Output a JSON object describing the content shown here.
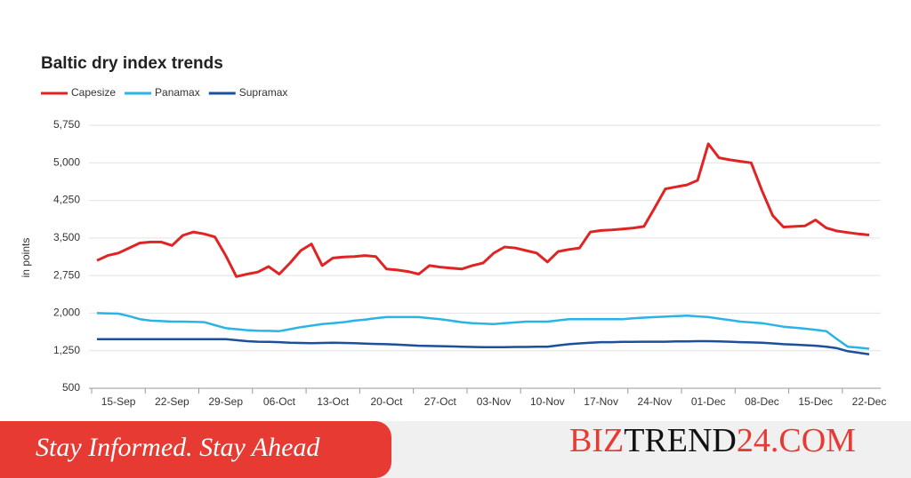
{
  "chart_data": {
    "type": "line",
    "title": "Baltic dry index trends",
    "y_label": "in points",
    "categories": [
      null,
      null,
      "15-Sep",
      null,
      null,
      null,
      null,
      "22-Sep",
      null,
      null,
      null,
      null,
      "29-Sep",
      null,
      null,
      null,
      null,
      "06-Oct",
      null,
      null,
      null,
      null,
      "13-Oct",
      null,
      null,
      null,
      null,
      "20-Oct",
      null,
      null,
      null,
      null,
      "27-Oct",
      null,
      null,
      null,
      null,
      "03-Nov",
      null,
      null,
      null,
      null,
      "10-Nov",
      null,
      null,
      null,
      null,
      "17-Nov",
      null,
      null,
      null,
      null,
      "24-Nov",
      null,
      null,
      null,
      null,
      "01-Dec",
      null,
      null,
      null,
      null,
      "08-Dec",
      null,
      null,
      null,
      null,
      "15-Dec",
      null,
      null,
      null,
      null,
      "22-Dec"
    ],
    "series": [
      {
        "name": "Capesize",
        "color": "#e02424",
        "values": [
          3050,
          3150,
          3200,
          3300,
          3400,
          3420,
          3420,
          3350,
          3550,
          3620,
          3580,
          3520,
          3150,
          2730,
          2780,
          2820,
          2930,
          2780,
          3000,
          3250,
          3380,
          2950,
          3100,
          3120,
          3130,
          3150,
          3130,
          2880,
          2860,
          2830,
          2780,
          2950,
          2920,
          2900,
          2880,
          2950,
          3000,
          3200,
          3320,
          3300,
          3250,
          3200,
          3020,
          3230,
          3270,
          3300,
          3620,
          3650,
          3660,
          3680,
          3700,
          3730,
          4100,
          4480,
          4520,
          4560,
          4650,
          5380,
          5100,
          5060,
          5030,
          5000,
          4450,
          3950,
          3720,
          3730,
          3740,
          3860,
          3700,
          3640,
          3610,
          3580,
          3560
        ]
      },
      {
        "name": "Panamax",
        "color": "#2ab4e6",
        "values": [
          2000,
          1995,
          1990,
          1940,
          1880,
          1850,
          1840,
          1830,
          1830,
          1825,
          1820,
          1760,
          1700,
          1680,
          1660,
          1650,
          1645,
          1640,
          1680,
          1720,
          1750,
          1780,
          1800,
          1820,
          1850,
          1870,
          1900,
          1920,
          1920,
          1920,
          1920,
          1900,
          1880,
          1850,
          1820,
          1800,
          1790,
          1780,
          1800,
          1815,
          1830,
          1830,
          1830,
          1855,
          1880,
          1880,
          1880,
          1880,
          1880,
          1880,
          1895,
          1910,
          1920,
          1930,
          1940,
          1950,
          1935,
          1920,
          1890,
          1860,
          1830,
          1815,
          1800,
          1765,
          1730,
          1710,
          1690,
          1665,
          1640,
          1480,
          1330,
          1310,
          1290
        ]
      },
      {
        "name": "Supramax",
        "color": "#1c4f9c",
        "values": [
          1480,
          1480,
          1480,
          1480,
          1480,
          1480,
          1480,
          1480,
          1480,
          1480,
          1480,
          1480,
          1480,
          1460,
          1440,
          1430,
          1425,
          1420,
          1410,
          1405,
          1400,
          1405,
          1410,
          1405,
          1400,
          1390,
          1385,
          1380,
          1370,
          1360,
          1350,
          1345,
          1340,
          1335,
          1330,
          1325,
          1320,
          1320,
          1320,
          1325,
          1325,
          1330,
          1330,
          1355,
          1380,
          1395,
          1410,
          1420,
          1420,
          1425,
          1425,
          1430,
          1430,
          1430,
          1435,
          1435,
          1440,
          1440,
          1435,
          1430,
          1420,
          1415,
          1410,
          1395,
          1380,
          1370,
          1360,
          1350,
          1330,
          1300,
          1240,
          1210,
          1180
        ]
      }
    ],
    "ylim": [
      500,
      5750
    ],
    "yticks": [
      500,
      {
        "value": 1250,
        "label": "1,250"
      },
      {
        "value": 2000,
        "label": "2,000"
      },
      {
        "value": 2750,
        "label": "2,750"
      },
      {
        "value": 3500,
        "label": "3,500"
      },
      {
        "value": 4250,
        "label": "4,250"
      },
      {
        "value": 5000,
        "label": "5,000"
      },
      {
        "value": 5750,
        "label": "5,750"
      }
    ],
    "grid": true,
    "legend": "top-left"
  },
  "footer": {
    "tagline": "Stay Informed. Stay Ahead",
    "brand": [
      "BIZ",
      "TREND",
      "24.COM"
    ]
  }
}
